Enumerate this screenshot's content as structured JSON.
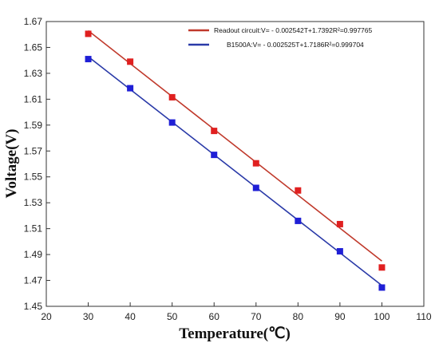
{
  "chart_data": {
    "type": "scatter",
    "xlabel": "Temperature(℃)",
    "ylabel": "Voltage(V)",
    "xlim": [
      20,
      110
    ],
    "ylim": [
      1.45,
      1.67
    ],
    "xticks": [
      20,
      30,
      40,
      50,
      60,
      70,
      80,
      90,
      100,
      110
    ],
    "yticks": [
      1.45,
      1.47,
      1.49,
      1.51,
      1.53,
      1.55,
      1.57,
      1.59,
      1.61,
      1.63,
      1.65,
      1.67
    ],
    "xtick_labels": [
      "20",
      "30",
      "40",
      "50",
      "60",
      "70",
      "80",
      "90",
      "100",
      "110"
    ],
    "ytick_labels": [
      "1.45",
      "1.47",
      "1.49",
      "1.51",
      "1.53",
      "1.55",
      "1.57",
      "1.59",
      "1.61",
      "1.63",
      "1.65",
      "1.67"
    ],
    "legend_position": "top-right",
    "grid": false,
    "series": [
      {
        "name": "Readout circuit:V= - 0.002542T+1.7392R²=0.997765",
        "color": "#e02020",
        "line_color": "#c0392b",
        "x": [
          30,
          40,
          50,
          60,
          70,
          80,
          90,
          100
        ],
        "y": [
          1.6605,
          1.639,
          1.6115,
          1.5855,
          1.5605,
          1.5395,
          1.5135,
          1.48
        ],
        "fit": {
          "slope": -0.002542,
          "intercept": 1.7392
        }
      },
      {
        "name": "B1500A:V= - 0.002525T+1.7186R²=0.999704",
        "color": "#1f1fd6",
        "line_color": "#2a3aa8",
        "x": [
          30,
          40,
          50,
          60,
          70,
          80,
          90,
          100
        ],
        "y": [
          1.641,
          1.6185,
          1.592,
          1.567,
          1.5415,
          1.516,
          1.4925,
          1.4645
        ],
        "fit": {
          "slope": -0.002525,
          "intercept": 1.7186
        }
      }
    ]
  }
}
